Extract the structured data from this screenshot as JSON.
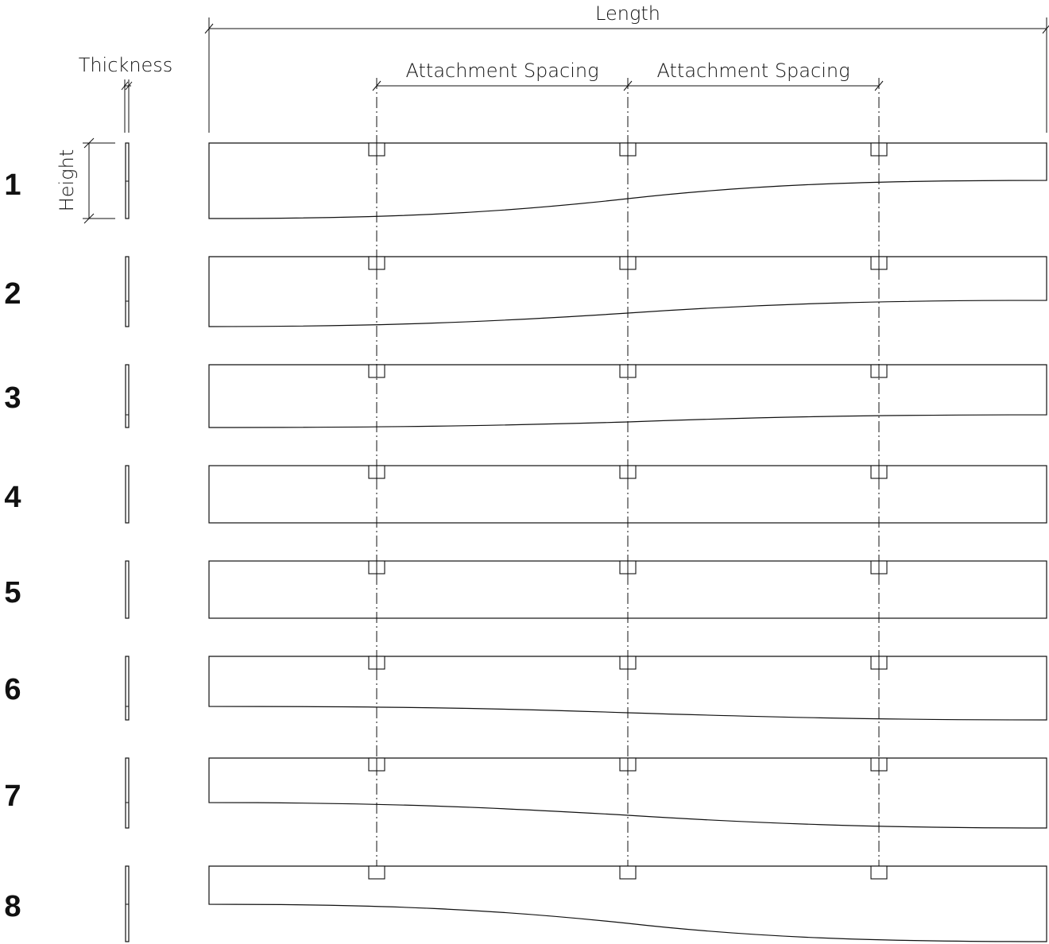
{
  "labels": {
    "length": "Length",
    "thickness": "Thickness",
    "height": "Height",
    "attachment_spacing_1": "Attachment Spacing",
    "attachment_spacing_2": "Attachment Spacing"
  },
  "panels": [
    {
      "number": "1"
    },
    {
      "number": "2"
    },
    {
      "number": "3"
    },
    {
      "number": "4"
    },
    {
      "number": "5"
    },
    {
      "number": "6"
    },
    {
      "number": "7"
    },
    {
      "number": "8"
    }
  ]
}
